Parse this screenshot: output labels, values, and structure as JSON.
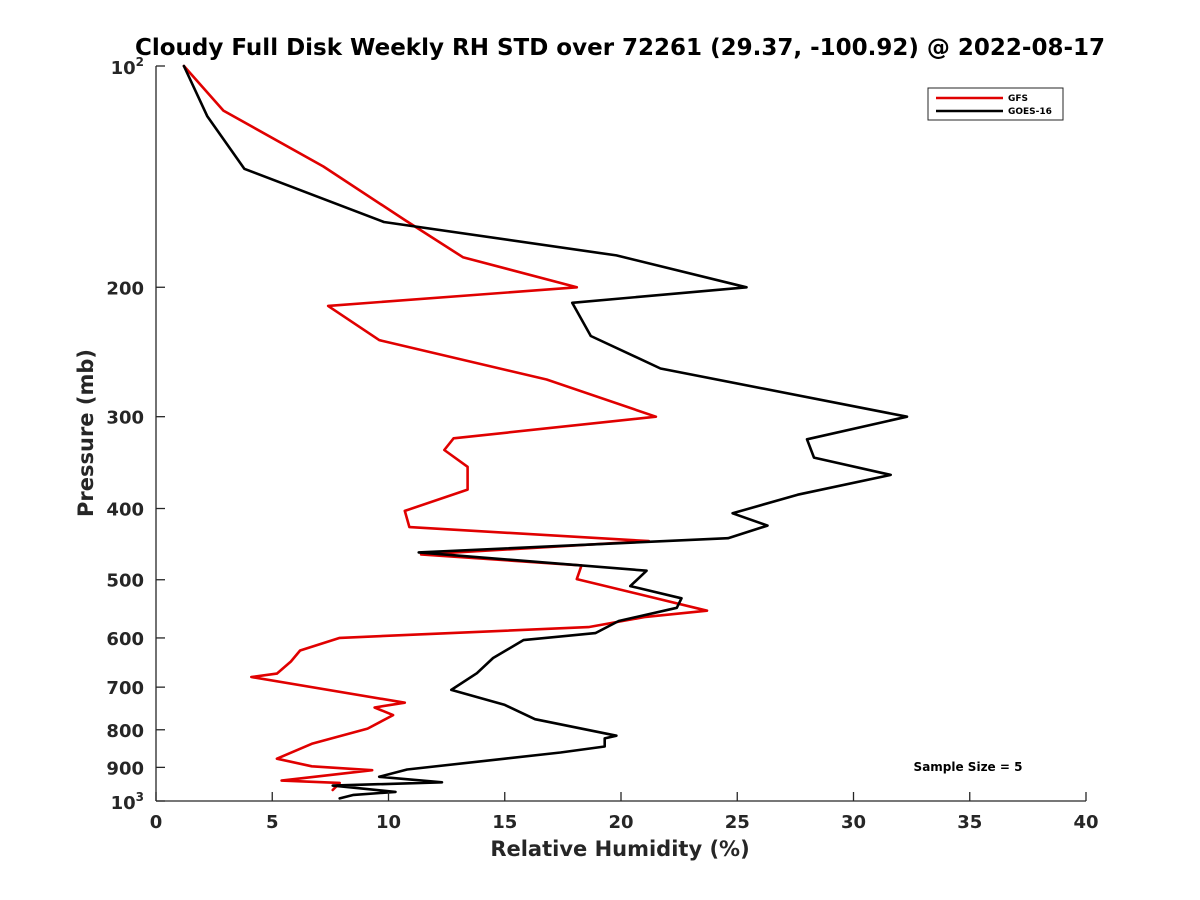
{
  "chart_data": {
    "type": "line",
    "title": "Cloudy Full Disk Weekly RH STD over 72261 (29.37, -100.92) @ 2022-08-17",
    "xlabel": "Relative Humidity (%)",
    "ylabel": "Pressure (mb)",
    "xlim": [
      0,
      40
    ],
    "ylim": [
      100,
      1000
    ],
    "y_scale": "log",
    "y_reversed": true,
    "grid": false,
    "legend_position": "top-right",
    "x_ticks": [
      "0",
      "5",
      "10",
      "15",
      "20",
      "25",
      "30",
      "35",
      "40"
    ],
    "y_ticks": [
      {
        "value": 100,
        "base": "10",
        "exp": "2"
      },
      {
        "value": 200,
        "label": "200"
      },
      {
        "value": 300,
        "label": "300"
      },
      {
        "value": 400,
        "label": "400"
      },
      {
        "value": 500,
        "label": "500"
      },
      {
        "value": 600,
        "label": "600"
      },
      {
        "value": 700,
        "label": "700"
      },
      {
        "value": 800,
        "label": "800"
      },
      {
        "value": 900,
        "label": "900"
      },
      {
        "value": 1000,
        "base": "10",
        "exp": "3"
      }
    ],
    "annotation": "Sample Size = 5",
    "series": [
      {
        "name": "GFS",
        "color": "#e00000",
        "points": [
          [
            1.2,
            100
          ],
          [
            2.9,
            115
          ],
          [
            7.2,
            137
          ],
          [
            10.7,
            162
          ],
          [
            13.2,
            182
          ],
          [
            18.1,
            200
          ],
          [
            7.4,
            212
          ],
          [
            9.6,
            236
          ],
          [
            16.8,
            267
          ],
          [
            21.5,
            300
          ],
          [
            12.8,
            321
          ],
          [
            12.4,
            333
          ],
          [
            13.4,
            351
          ],
          [
            13.4,
            377
          ],
          [
            10.7,
            403
          ],
          [
            10.9,
            424
          ],
          [
            21.2,
            443
          ],
          [
            11.4,
            462
          ],
          [
            18.3,
            478
          ],
          [
            18.1,
            499
          ],
          [
            21.3,
            528
          ],
          [
            23.7,
            551
          ],
          [
            21.0,
            562
          ],
          [
            18.6,
            580
          ],
          [
            7.9,
            600
          ],
          [
            6.2,
            624
          ],
          [
            5.8,
            646
          ],
          [
            5.2,
            671
          ],
          [
            4.1,
            678
          ],
          [
            10.7,
            735
          ],
          [
            9.4,
            746
          ],
          [
            10.2,
            764
          ],
          [
            9.1,
            797
          ],
          [
            6.7,
            836
          ],
          [
            5.2,
            876
          ],
          [
            6.7,
            897
          ],
          [
            9.3,
            908
          ],
          [
            5.4,
            938
          ],
          [
            7.9,
            945
          ],
          [
            7.6,
            966
          ]
        ]
      },
      {
        "name": "GOES-16",
        "color": "#000000",
        "points": [
          [
            1.2,
            100
          ],
          [
            2.2,
            117
          ],
          [
            3.8,
            138
          ],
          [
            9.8,
            163
          ],
          [
            19.8,
            181
          ],
          [
            25.4,
            200
          ],
          [
            17.9,
            210
          ],
          [
            18.7,
            233
          ],
          [
            21.7,
            258
          ],
          [
            32.3,
            300
          ],
          [
            28.0,
            322
          ],
          [
            28.3,
            341
          ],
          [
            31.6,
            360
          ],
          [
            27.6,
            383
          ],
          [
            24.8,
            406
          ],
          [
            26.3,
            422
          ],
          [
            24.6,
            439
          ],
          [
            11.3,
            459
          ],
          [
            21.1,
            486
          ],
          [
            20.4,
            510
          ],
          [
            22.6,
            530
          ],
          [
            22.4,
            546
          ],
          [
            19.9,
            569
          ],
          [
            18.9,
            591
          ],
          [
            15.8,
            604
          ],
          [
            14.5,
            639
          ],
          [
            13.8,
            670
          ],
          [
            12.7,
            706
          ],
          [
            15.0,
            740
          ],
          [
            16.3,
            774
          ],
          [
            19.8,
            815
          ],
          [
            19.3,
            822
          ],
          [
            19.3,
            843
          ],
          [
            17.4,
            859
          ],
          [
            15.0,
            876
          ],
          [
            10.8,
            906
          ],
          [
            9.6,
            927
          ],
          [
            12.3,
            943
          ],
          [
            7.6,
            953
          ],
          [
            10.3,
            972
          ],
          [
            8.5,
            981
          ],
          [
            7.9,
            992
          ]
        ]
      }
    ]
  }
}
